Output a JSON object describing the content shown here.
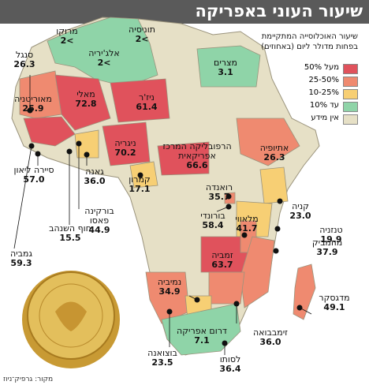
{
  "title": "שיעור העוני באפריקה",
  "legend": {
    "title": "שיעור האוכלוסייה המתקיימת בפחות מדולר ליום (באחוזים)",
    "items": [
      {
        "label": "מעל 50%",
        "color": "#e0525c"
      },
      {
        "label": "25-50%",
        "color": "#ef8a70"
      },
      {
        "label": "10-25%",
        "color": "#f7cf74"
      },
      {
        "label": "עד 10%",
        "color": "#8fd4a8"
      },
      {
        "label": "אין מידע",
        "color": "#e6e0c6"
      }
    ]
  },
  "countries": [
    {
      "name": "מרוקו",
      "value": ">2"
    },
    {
      "name": "תוניסיה",
      "value": ">2"
    },
    {
      "name": "אלג'יריה",
      "value": ">2"
    },
    {
      "name": "מצרים",
      "value": "3.1"
    },
    {
      "name": "סנגל",
      "value": "26.3"
    },
    {
      "name": "מאוריטניה",
      "value": "25.9"
    },
    {
      "name": "מאלי",
      "value": "72.8"
    },
    {
      "name": "ניז'ר",
      "value": "61.4"
    },
    {
      "name": "ניגריה",
      "value": "70.2"
    },
    {
      "name": "הרפובליקה המרכז אפריקאית",
      "value": "66.6"
    },
    {
      "name": "אתיופיה",
      "value": "26.3"
    },
    {
      "name": "סיירה ליאון",
      "value": "57.0"
    },
    {
      "name": "גאנה",
      "value": "36.0"
    },
    {
      "name": "קמרון",
      "value": "17.1"
    },
    {
      "name": "רואנדה",
      "value": "35.7"
    },
    {
      "name": "בורונדי",
      "value": "58.4"
    },
    {
      "name": "קניה",
      "value": "23.0"
    },
    {
      "name": "טנזניה",
      "value": "19.9"
    },
    {
      "name": "מלאווי",
      "value": "41.7"
    },
    {
      "name": "חוף השנהב",
      "value": "15.5"
    },
    {
      "name": "בורקינה פאסו",
      "value": "44.9"
    },
    {
      "name": "גמביה",
      "value": "59.3"
    },
    {
      "name": "זמביה",
      "value": "63.7"
    },
    {
      "name": "מוזמביק",
      "value": "37.9"
    },
    {
      "name": "נמיביה",
      "value": "34.9"
    },
    {
      "name": "מדגסקר",
      "value": "49.1"
    },
    {
      "name": "זימבבואה",
      "value": "36.0"
    },
    {
      "name": "דרום אפריקה",
      "value": "7.1"
    },
    {
      "name": "בוצואנה",
      "value": "23.5"
    },
    {
      "name": "לסותו",
      "value": "36.4"
    }
  ],
  "source": "מקור: גרפיק־ניוז"
}
